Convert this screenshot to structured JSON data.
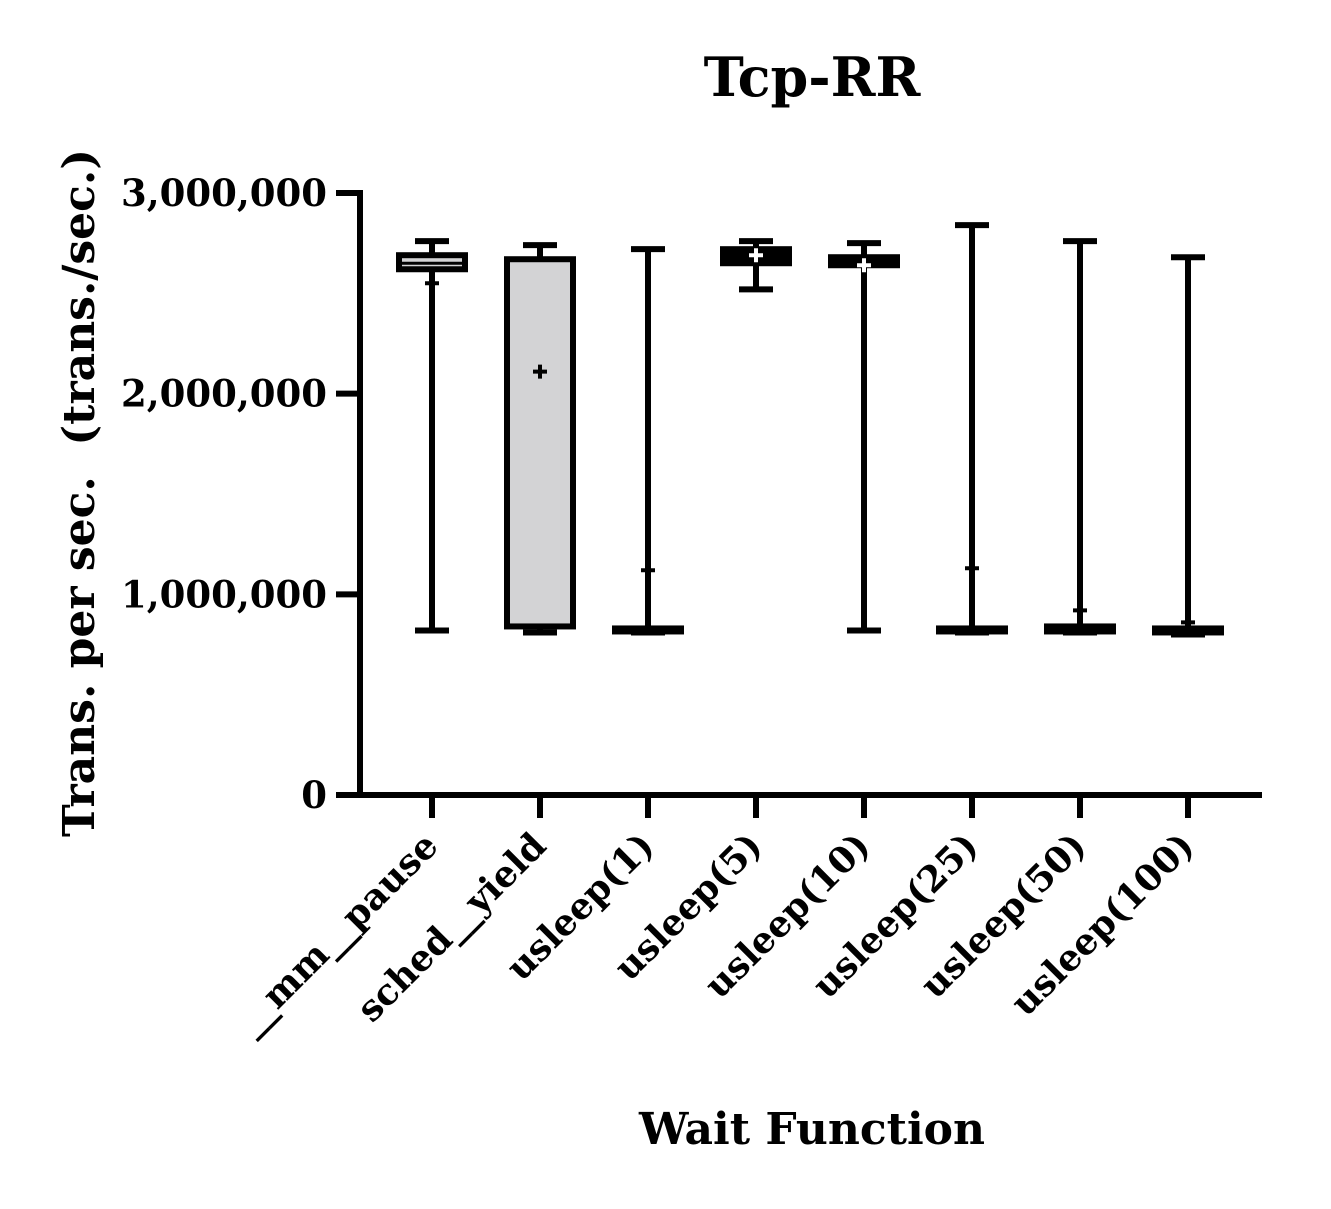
{
  "chart_data": {
    "type": "box",
    "title": "Tcp-RR",
    "xlabel": "Wait Function",
    "ylabel": "Trans. per sec.  (trans./sec.)",
    "ylim": [
      0,
      3000000
    ],
    "yticks": [
      0,
      1000000,
      2000000,
      3000000
    ],
    "ytick_labels": [
      "0",
      "1,000,000",
      "2,000,000",
      "3,000,000"
    ],
    "grid": false,
    "legend": "none",
    "colors": {
      "stroke": "#000000",
      "box_fill_gray": "#d3d3d5",
      "box_fill_dark": "#000000"
    },
    "categories": [
      "__mm__pause",
      "sched__yield",
      "usleep(1)",
      "usleep(5)",
      "usleep(10)",
      "usleep(25)",
      "usleep(50)",
      "usleep(100)"
    ],
    "boxes": [
      {
        "category": "__mm__pause",
        "min": 820000,
        "q1": 2620000,
        "median": 2650000,
        "q3": 2690000,
        "max": 2760000,
        "mean": 2550000,
        "fill": "gray"
      },
      {
        "category": "sched__yield",
        "min": 810000,
        "q1": 840000,
        "median": 840000,
        "q3": 2670000,
        "max": 2740000,
        "mean": 2110000,
        "fill": "gray"
      },
      {
        "category": "usleep(1)",
        "min": 810000,
        "q1": 815000,
        "median": 820000,
        "q3": 830000,
        "max": 2720000,
        "mean": 1120000,
        "fill": "dark"
      },
      {
        "category": "usleep(5)",
        "min": 2520000,
        "q1": 2650000,
        "median": 2690000,
        "q3": 2720000,
        "max": 2760000,
        "mean": 2690000,
        "fill": "dark"
      },
      {
        "category": "usleep(10)",
        "min": 820000,
        "q1": 2640000,
        "median": 2660000,
        "q3": 2680000,
        "max": 2750000,
        "mean": 2640000,
        "fill": "dark"
      },
      {
        "category": "usleep(25)",
        "min": 810000,
        "q1": 815000,
        "median": 820000,
        "q3": 830000,
        "max": 2840000,
        "mean": 1130000,
        "fill": "dark"
      },
      {
        "category": "usleep(50)",
        "min": 810000,
        "q1": 815000,
        "median": 825000,
        "q3": 840000,
        "max": 2760000,
        "mean": 920000,
        "fill": "dark"
      },
      {
        "category": "usleep(100)",
        "min": 800000,
        "q1": 810000,
        "median": 820000,
        "q3": 830000,
        "max": 2680000,
        "mean": 860000,
        "fill": "dark"
      }
    ]
  }
}
